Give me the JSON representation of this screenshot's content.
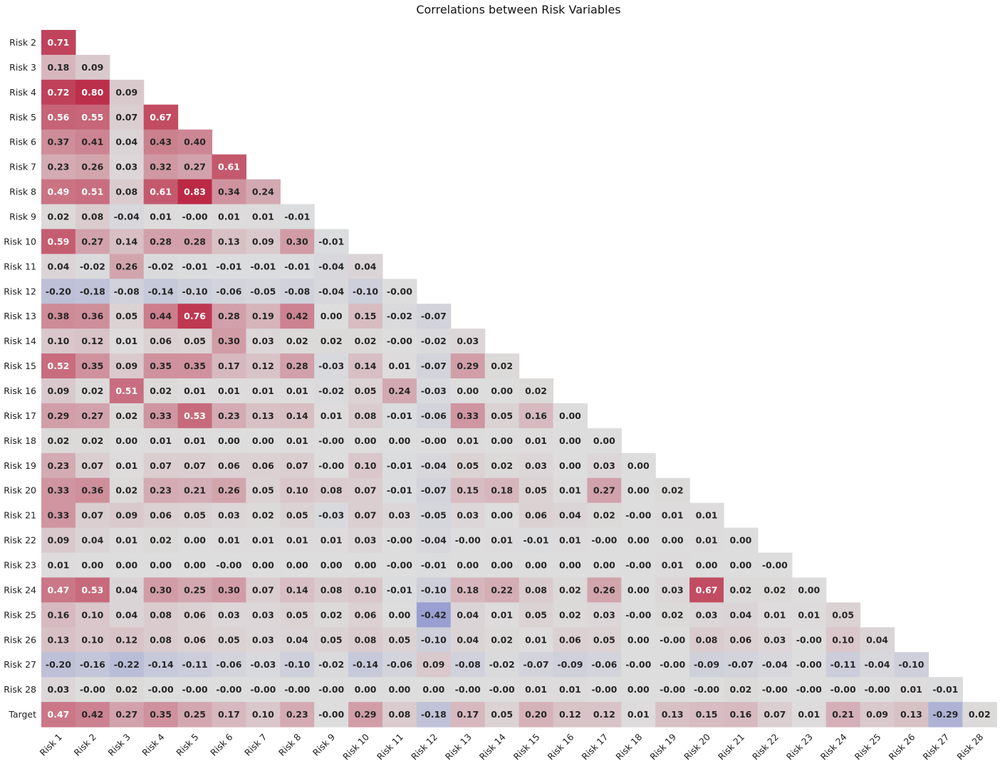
{
  "chart_data": {
    "type": "heatmap",
    "title": "Correlations between Risk Variables",
    "xlabel": "",
    "ylabel": "",
    "x_labels": [
      "Risk 1",
      "Risk 2",
      "Risk 3",
      "Risk 4",
      "Risk 5",
      "Risk 6",
      "Risk 7",
      "Risk 8",
      "Risk 9",
      "Risk 10",
      "Risk 11",
      "Risk 12",
      "Risk 13",
      "Risk 14",
      "Risk 15",
      "Risk 16",
      "Risk 17",
      "Risk 18",
      "Risk 19",
      "Risk 20",
      "Risk 21",
      "Risk 22",
      "Risk 23",
      "Risk 24",
      "Risk 25",
      "Risk 26",
      "Risk 27",
      "Risk 28"
    ],
    "y_labels": [
      "Risk 2",
      "Risk 3",
      "Risk 4",
      "Risk 5",
      "Risk 6",
      "Risk 7",
      "Risk 8",
      "Risk 9",
      "Risk 10",
      "Risk 11",
      "Risk 12",
      "Risk 13",
      "Risk 14",
      "Risk 15",
      "Risk 16",
      "Risk 17",
      "Risk 18",
      "Risk 19",
      "Risk 20",
      "Risk 21",
      "Risk 22",
      "Risk 23",
      "Risk 24",
      "Risk 25",
      "Risk 26",
      "Risk 27",
      "Risk 28",
      "Target"
    ],
    "values": [
      [
        "0.71"
      ],
      [
        "0.18",
        "0.09"
      ],
      [
        "0.72",
        "0.80",
        "0.09"
      ],
      [
        "0.56",
        "0.55",
        "0.07",
        "0.67"
      ],
      [
        "0.37",
        "0.41",
        "0.04",
        "0.43",
        "0.40"
      ],
      [
        "0.23",
        "0.26",
        "0.03",
        "0.32",
        "0.27",
        "0.61"
      ],
      [
        "0.49",
        "0.51",
        "0.08",
        "0.61",
        "0.83",
        "0.34",
        "0.24"
      ],
      [
        "0.02",
        "0.08",
        "-0.04",
        "0.01",
        "-0.00",
        "0.01",
        "0.01",
        "-0.01"
      ],
      [
        "0.59",
        "0.27",
        "0.14",
        "0.28",
        "0.28",
        "0.13",
        "0.09",
        "0.30",
        "-0.01"
      ],
      [
        "0.04",
        "-0.02",
        "0.26",
        "-0.02",
        "-0.01",
        "-0.01",
        "-0.01",
        "-0.01",
        "-0.04",
        "0.04"
      ],
      [
        "-0.20",
        "-0.18",
        "-0.08",
        "-0.14",
        "-0.10",
        "-0.06",
        "-0.05",
        "-0.08",
        "-0.04",
        "-0.10",
        "-0.00"
      ],
      [
        "0.38",
        "0.36",
        "0.05",
        "0.44",
        "0.76",
        "0.28",
        "0.19",
        "0.42",
        "0.00",
        "0.15",
        "-0.02",
        "-0.07"
      ],
      [
        "0.10",
        "0.12",
        "0.01",
        "0.06",
        "0.05",
        "0.30",
        "0.03",
        "0.02",
        "0.02",
        "0.02",
        "-0.00",
        "-0.02",
        "0.03"
      ],
      [
        "0.52",
        "0.35",
        "0.09",
        "0.35",
        "0.35",
        "0.17",
        "0.12",
        "0.28",
        "-0.03",
        "0.14",
        "0.01",
        "-0.07",
        "0.29",
        "0.02"
      ],
      [
        "0.09",
        "0.02",
        "0.51",
        "0.02",
        "0.01",
        "0.01",
        "0.01",
        "0.01",
        "-0.02",
        "0.05",
        "0.24",
        "-0.03",
        "0.00",
        "0.00",
        "0.02"
      ],
      [
        "0.29",
        "0.27",
        "0.02",
        "0.33",
        "0.53",
        "0.23",
        "0.13",
        "0.14",
        "0.01",
        "0.08",
        "-0.01",
        "-0.06",
        "0.33",
        "0.05",
        "0.16",
        "0.00"
      ],
      [
        "0.02",
        "0.02",
        "0.00",
        "0.01",
        "0.01",
        "0.00",
        "0.00",
        "0.01",
        "-0.00",
        "0.00",
        "0.00",
        "-0.00",
        "0.01",
        "0.00",
        "0.01",
        "0.00",
        "0.00"
      ],
      [
        "0.23",
        "0.07",
        "0.01",
        "0.07",
        "0.07",
        "0.06",
        "0.06",
        "0.07",
        "-0.00",
        "0.10",
        "-0.01",
        "-0.04",
        "0.05",
        "0.02",
        "0.03",
        "0.00",
        "0.03",
        "0.00"
      ],
      [
        "0.33",
        "0.36",
        "0.02",
        "0.23",
        "0.21",
        "0.26",
        "0.05",
        "0.10",
        "0.08",
        "0.07",
        "-0.01",
        "-0.07",
        "0.15",
        "0.18",
        "0.05",
        "0.01",
        "0.27",
        "0.00",
        "0.02"
      ],
      [
        "0.33",
        "0.07",
        "0.09",
        "0.06",
        "0.05",
        "0.03",
        "0.02",
        "0.05",
        "-0.03",
        "0.07",
        "0.03",
        "-0.05",
        "0.03",
        "0.00",
        "0.06",
        "0.04",
        "0.02",
        "-0.00",
        "0.01",
        "0.01"
      ],
      [
        "0.09",
        "0.04",
        "0.01",
        "0.02",
        "0.00",
        "0.01",
        "0.01",
        "0.01",
        "0.01",
        "0.03",
        "-0.00",
        "-0.04",
        "-0.00",
        "0.01",
        "-0.01",
        "0.01",
        "-0.00",
        "0.00",
        "0.00",
        "0.01",
        "0.00"
      ],
      [
        "0.01",
        "0.00",
        "0.00",
        "0.00",
        "0.00",
        "-0.00",
        "0.00",
        "0.00",
        "0.00",
        "0.00",
        "-0.00",
        "-0.01",
        "0.00",
        "0.00",
        "0.00",
        "0.00",
        "0.00",
        "-0.00",
        "0.01",
        "0.00",
        "0.00",
        "-0.00"
      ],
      [
        "0.47",
        "0.53",
        "0.04",
        "0.30",
        "0.25",
        "0.30",
        "0.07",
        "0.14",
        "0.08",
        "0.10",
        "-0.01",
        "-0.10",
        "0.18",
        "0.22",
        "0.08",
        "0.02",
        "0.26",
        "0.00",
        "0.03",
        "0.67",
        "0.02",
        "0.02",
        "0.00"
      ],
      [
        "0.16",
        "0.10",
        "0.04",
        "0.08",
        "0.06",
        "0.03",
        "0.03",
        "0.05",
        "0.02",
        "0.06",
        "0.00",
        "-0.42",
        "0.04",
        "0.01",
        "0.05",
        "0.02",
        "0.03",
        "-0.00",
        "0.02",
        "0.03",
        "0.04",
        "0.01",
        "0.01",
        "0.05"
      ],
      [
        "0.13",
        "0.10",
        "0.12",
        "0.08",
        "0.06",
        "0.05",
        "0.03",
        "0.04",
        "0.05",
        "0.08",
        "0.05",
        "-0.10",
        "0.04",
        "0.02",
        "0.01",
        "0.06",
        "0.05",
        "0.00",
        "-0.00",
        "0.08",
        "0.06",
        "0.03",
        "-0.00",
        "0.10",
        "0.04"
      ],
      [
        "-0.20",
        "-0.16",
        "-0.22",
        "-0.14",
        "-0.11",
        "-0.06",
        "-0.03",
        "-0.10",
        "-0.02",
        "-0.14",
        "-0.06",
        "0.09",
        "-0.08",
        "-0.02",
        "-0.07",
        "-0.09",
        "-0.06",
        "-0.00",
        "-0.00",
        "-0.09",
        "-0.07",
        "-0.04",
        "-0.00",
        "-0.11",
        "-0.04",
        "-0.10"
      ],
      [
        "0.03",
        "-0.00",
        "0.02",
        "-0.00",
        "-0.00",
        "-0.00",
        "-0.00",
        "-0.00",
        "-0.00",
        "0.00",
        "0.00",
        "0.00",
        "-0.00",
        "-0.00",
        "0.01",
        "0.01",
        "-0.00",
        "0.00",
        "-0.00",
        "-0.00",
        "0.02",
        "-0.00",
        "-0.00",
        "-0.00",
        "-0.00",
        "0.01",
        "-0.01"
      ],
      [
        "0.47",
        "0.42",
        "0.27",
        "0.35",
        "0.25",
        "0.17",
        "0.10",
        "0.23",
        "-0.00",
        "0.29",
        "0.08",
        "-0.18",
        "0.17",
        "0.05",
        "0.20",
        "0.12",
        "0.12",
        "0.01",
        "0.13",
        "0.15",
        "0.16",
        "0.07",
        "0.01",
        "0.21",
        "0.09",
        "0.13",
        "-0.29",
        "0.02"
      ]
    ],
    "color_scale": {
      "name": "coolwarm",
      "vmin": -1,
      "vmax": 1,
      "negative_color": "#3b4cc0",
      "center_color": "#dddddd",
      "positive_color": "#b40426"
    },
    "annotations": true,
    "grid": false,
    "colorbar": false,
    "mask": "upper-triangle"
  }
}
